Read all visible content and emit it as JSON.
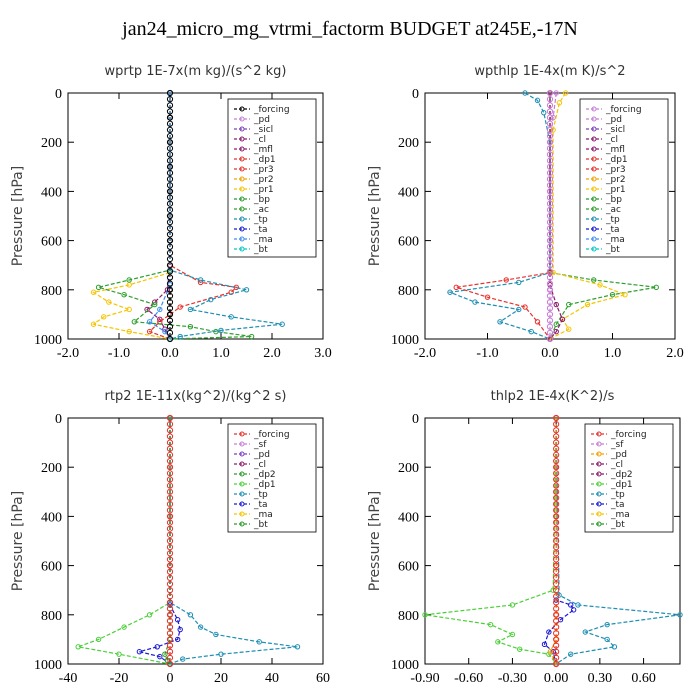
{
  "title": "jan24_micro_mg_vtrmi_factorm  BUDGET at245E,-17N",
  "chart_data": [
    {
      "type": "line",
      "title": "wprtp  1E-7x(m kg)/(s^2 kg)",
      "ylabel": "Pressure [hPa]",
      "ylim": [
        1000,
        0
      ],
      "xlim": [
        -2.0,
        3.0
      ],
      "xticks": [
        "-2.0",
        "-1.0",
        "0.0",
        "1.0",
        "2.0",
        "3.0"
      ],
      "yticks": [
        "0",
        "200",
        "400",
        "600",
        "800",
        "1000"
      ],
      "legend": [
        "_forcing",
        "_pd",
        "_sicl",
        "_cl",
        "_mfl",
        "_dp1",
        "_pr3",
        "_pr2",
        "_pr1",
        "_bp",
        "_ac",
        "_tp",
        "_ta",
        "_ma",
        "_bt"
      ],
      "series": [
        {
          "name": "_forcing",
          "color": "#000000",
          "x": [
            0,
            0,
            0,
            0,
            0,
            0,
            0,
            0,
            0,
            0,
            0
          ],
          "y": [
            0,
            100,
            200,
            300,
            400,
            500,
            600,
            700,
            800,
            900,
            1000
          ]
        },
        {
          "name": "_cl",
          "color": "#8b1a6b",
          "x": [
            0,
            0,
            -0.05,
            -0.3,
            -0.45,
            -0.2,
            -0.1,
            0
          ],
          "y": [
            0,
            700,
            800,
            850,
            880,
            920,
            960,
            1000
          ]
        },
        {
          "name": "_pr3",
          "color": "#e8302a",
          "x": [
            0,
            0,
            0.6,
            1.3,
            1.2,
            0.2,
            -0.2,
            -0.4,
            0
          ],
          "y": [
            0,
            700,
            770,
            790,
            810,
            870,
            930,
            970,
            1000
          ]
        },
        {
          "name": "_pr1",
          "color": "#f5c400",
          "x": [
            0,
            0,
            -0.8,
            -1.5,
            -1.2,
            -0.8,
            -1.3,
            -1.5,
            -0.8,
            0
          ],
          "y": [
            0,
            730,
            780,
            810,
            850,
            880,
            910,
            940,
            970,
            1000
          ]
        },
        {
          "name": "_ac",
          "color": "#2ca02c",
          "x": [
            0,
            0,
            -0.8,
            -1.4,
            -0.9,
            -0.3,
            -0.7,
            0.4,
            0.9,
            1.6,
            0
          ],
          "y": [
            0,
            720,
            760,
            790,
            820,
            860,
            930,
            950,
            970,
            990,
            1000
          ]
        },
        {
          "name": "_tp",
          "color": "#1f8fb4",
          "x": [
            0,
            0,
            0.6,
            1.5,
            0.8,
            0.4,
            1.2,
            2.2,
            1.0,
            0.2,
            0
          ],
          "y": [
            0,
            720,
            760,
            800,
            840,
            880,
            910,
            940,
            965,
            990,
            1000
          ]
        },
        {
          "name": "_ma",
          "color": "#3f8ef0",
          "x": [
            0,
            0,
            -0.2,
            -0.4,
            -0.1,
            0
          ],
          "y": [
            0,
            780,
            880,
            930,
            970,
            1000
          ]
        }
      ]
    },
    {
      "type": "line",
      "title": "wpthlp  1E-4x(m K)/s^2",
      "ylabel": "Pressure [hPa]",
      "ylim": [
        1000,
        0
      ],
      "xlim": [
        -2.0,
        2.0
      ],
      "xticks": [
        "-2.0",
        "-1.0",
        "0.0",
        "1.0",
        "2.0"
      ],
      "yticks": [
        "0",
        "200",
        "400",
        "600",
        "800",
        "1000"
      ],
      "legend": [
        "_forcing",
        "_pd",
        "_sicl",
        "_cl",
        "_mfl",
        "_dp1",
        "_pr3",
        "_pr2",
        "_pr1",
        "_bp",
        "_ac",
        "_tp",
        "_ta",
        "_ma",
        "_bt"
      ],
      "series": [
        {
          "name": "_forcing",
          "color": "#c77dd6",
          "x": [
            0.1,
            0.05,
            0,
            0,
            0,
            0,
            0
          ],
          "y": [
            0,
            100,
            200,
            400,
            600,
            800,
            1000
          ]
        },
        {
          "name": "_tp",
          "color": "#1f8fb4",
          "x": [
            -0.4,
            -0.2,
            -0.1,
            0,
            0,
            -0.5,
            -1.6,
            -1.2,
            -0.5,
            -0.8,
            -0.3,
            0
          ],
          "y": [
            0,
            30,
            80,
            200,
            730,
            770,
            810,
            850,
            880,
            930,
            970,
            1000
          ]
        },
        {
          "name": "_ac",
          "color": "#2ca02c",
          "x": [
            0,
            0,
            0.7,
            1.7,
            1.0,
            0.3,
            0.1,
            0
          ],
          "y": [
            0,
            730,
            760,
            790,
            820,
            860,
            940,
            1000
          ]
        },
        {
          "name": "_pr1",
          "color": "#f5c400",
          "x": [
            0.25,
            0.15,
            0.05,
            0.05,
            0.8,
            1.2,
            0.6,
            0.2,
            0.3,
            0
          ],
          "y": [
            0,
            40,
            150,
            730,
            780,
            820,
            860,
            920,
            960,
            1000
          ]
        },
        {
          "name": "_pr3",
          "color": "#e8302a",
          "x": [
            0,
            0,
            -0.7,
            -1.5,
            -1.0,
            -0.4,
            -0.2,
            0
          ],
          "y": [
            0,
            730,
            760,
            790,
            830,
            870,
            930,
            1000
          ]
        },
        {
          "name": "_cl",
          "color": "#8b1a6b",
          "x": [
            0,
            0,
            0.1,
            0.2,
            0.1,
            0
          ],
          "y": [
            0,
            780,
            860,
            920,
            970,
            1000
          ]
        }
      ]
    },
    {
      "type": "line",
      "title": "rtp2  1E-11x(kg^2)/(kg^2 s)",
      "ylabel": "Pressure [hPa]",
      "ylim": [
        1000,
        0
      ],
      "xlim": [
        -40,
        60
      ],
      "xticks": [
        "-40",
        "-20",
        "0",
        "20",
        "40",
        "60"
      ],
      "yticks": [
        "0",
        "200",
        "400",
        "600",
        "800",
        "1000"
      ],
      "legend": [
        "_forcing",
        "_sf",
        "_pd",
        "_cl",
        "_dp2",
        "_dp1",
        "_tp",
        "_ta",
        "_ma",
        "_bt"
      ],
      "series": [
        {
          "name": "_forcing",
          "color": "#e8302a",
          "x": [
            0,
            0,
            0,
            0,
            0,
            0,
            0
          ],
          "y": [
            0,
            200,
            400,
            600,
            800,
            900,
            1000
          ]
        },
        {
          "name": "_dp1",
          "color": "#4ccf3a",
          "x": [
            0,
            0,
            -8,
            -18,
            -28,
            -36,
            -20,
            0
          ],
          "y": [
            0,
            750,
            800,
            850,
            900,
            930,
            960,
            1000
          ]
        },
        {
          "name": "_tp",
          "color": "#1f8fb4",
          "x": [
            0,
            0,
            8,
            12,
            18,
            35,
            50,
            20,
            5,
            0
          ],
          "y": [
            0,
            750,
            800,
            850,
            880,
            910,
            930,
            960,
            980,
            1000
          ]
        },
        {
          "name": "_ta",
          "color": "#1a1ad6",
          "x": [
            0,
            0,
            3,
            4,
            3,
            -5,
            -12,
            -4,
            0
          ],
          "y": [
            0,
            760,
            820,
            860,
            900,
            930,
            950,
            970,
            1000
          ]
        },
        {
          "name": "_dp2",
          "color": "#2a9a2a",
          "x": [
            0,
            0,
            -2,
            -1,
            0
          ],
          "y": [
            0,
            900,
            960,
            985,
            1000
          ]
        }
      ]
    },
    {
      "type": "line",
      "title": "thlp2  1E-4x(K^2)/s",
      "ylabel": "Pressure [hPa]",
      "ylim": [
        1000,
        0
      ],
      "xlim": [
        -0.9,
        0.85
      ],
      "xticks": [
        "-0.90",
        "-0.60",
        "-0.30",
        "0.00",
        "0.30",
        "0.60"
      ],
      "yticks": [
        "0",
        "200",
        "400",
        "600",
        "800",
        "1000"
      ],
      "legend": [
        "_forcing",
        "_sf",
        "_pd",
        "_cl",
        "_dp2",
        "_dp1",
        "_tp",
        "_ta",
        "_ma",
        "_bt"
      ],
      "series": [
        {
          "name": "_forcing",
          "color": "#e8302a",
          "x": [
            0,
            0,
            0,
            0,
            0,
            0,
            0
          ],
          "y": [
            0,
            200,
            400,
            600,
            800,
            900,
            1000
          ]
        },
        {
          "name": "_dp1",
          "color": "#4ccf3a",
          "x": [
            0,
            -0.02,
            -0.3,
            -0.9,
            -0.45,
            -0.3,
            -0.4,
            -0.25,
            -0.05,
            0
          ],
          "y": [
            0,
            700,
            760,
            800,
            840,
            880,
            910,
            940,
            960,
            1000
          ]
        },
        {
          "name": "_tp",
          "color": "#1f8fb4",
          "x": [
            0,
            0.02,
            0.15,
            0.85,
            0.35,
            0.2,
            0.35,
            0.4,
            0.1,
            0
          ],
          "y": [
            0,
            720,
            760,
            800,
            840,
            870,
            900,
            930,
            960,
            1000
          ]
        },
        {
          "name": "_ta",
          "color": "#1a1ad6",
          "x": [
            0,
            0,
            0.1,
            0.12,
            0.03,
            -0.05,
            -0.08,
            -0.02,
            0
          ],
          "y": [
            0,
            740,
            760,
            780,
            820,
            870,
            920,
            950,
            1000
          ]
        },
        {
          "name": "_pd",
          "color": "#f5a000",
          "x": [
            0,
            0,
            -0.04,
            0
          ],
          "y": [
            0,
            900,
            950,
            1000
          ]
        }
      ]
    }
  ]
}
